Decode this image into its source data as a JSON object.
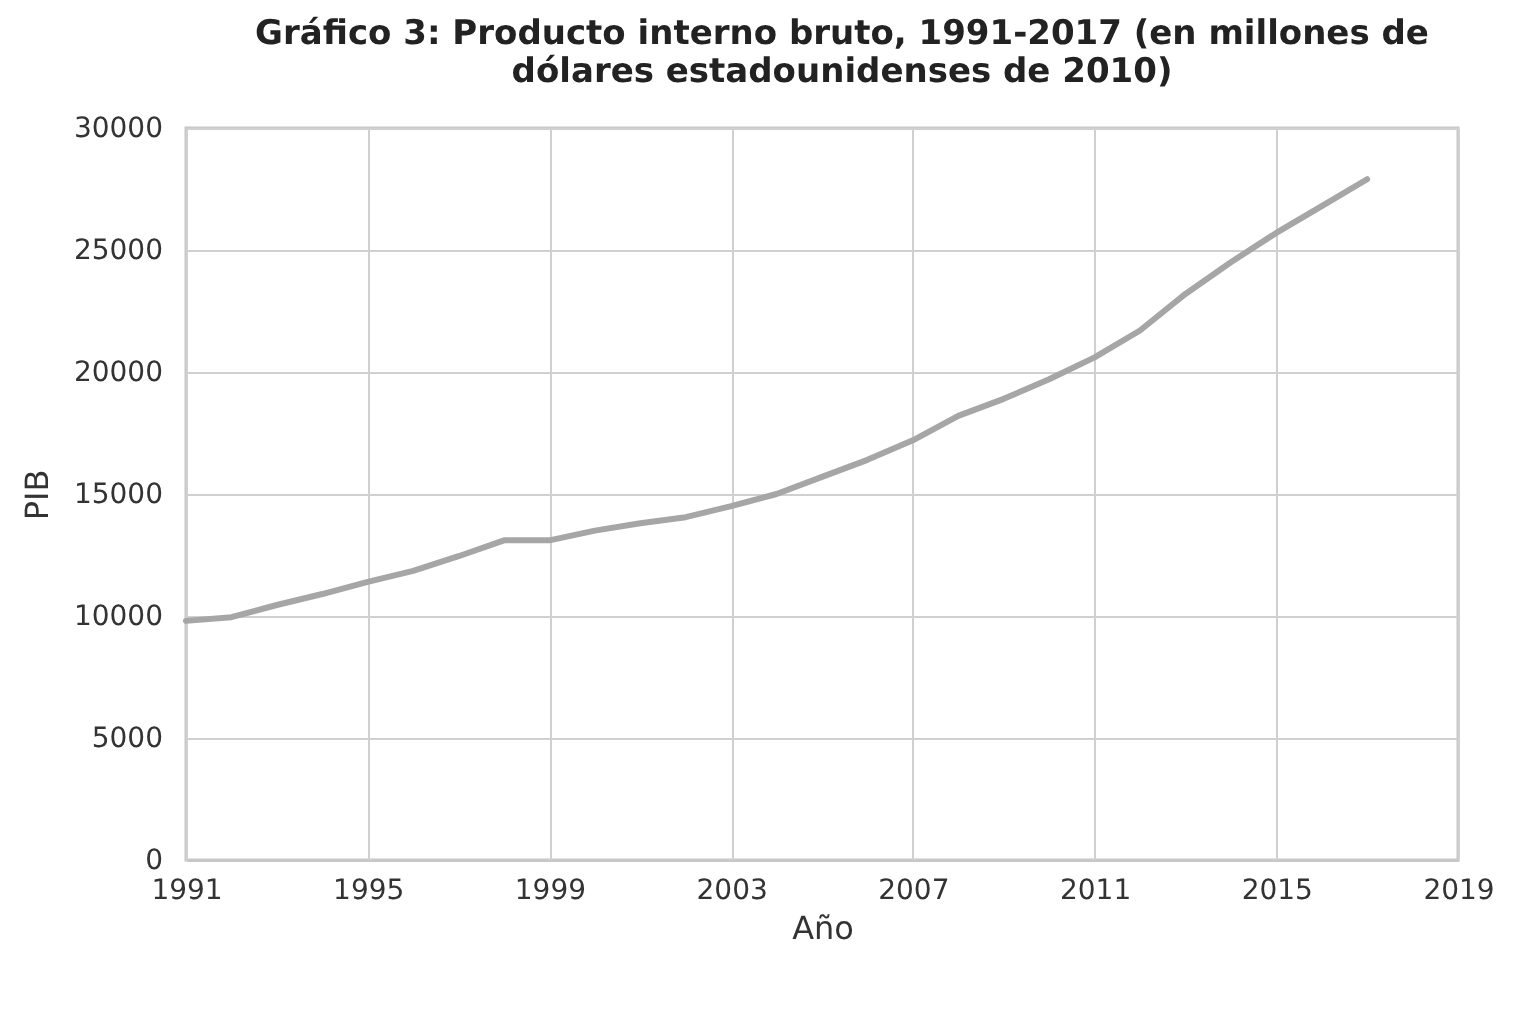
{
  "chart_data": {
    "type": "line",
    "title": "Gráfico 3: Producto interno bruto, 1991-2017 (en millones de dólares estadounidenses de 2010)",
    "xlabel": "Año",
    "ylabel": "PIB",
    "x": [
      1991,
      1992,
      1993,
      1994,
      1995,
      1996,
      1997,
      1998,
      1999,
      2000,
      2001,
      2002,
      2003,
      2004,
      2005,
      2006,
      2007,
      2008,
      2009,
      2010,
      2011,
      2012,
      2013,
      2014,
      2015,
      2016,
      2017
    ],
    "series": [
      {
        "color": "#a6a6a6",
        "values": [
          9800,
          9950,
          10450,
          10900,
          11400,
          11850,
          12450,
          13100,
          13100,
          13500,
          13800,
          14050,
          14500,
          15000,
          15700,
          16400,
          17200,
          18200,
          18900,
          19700,
          20600,
          21700,
          23200,
          24500,
          25700,
          26800,
          27900
        ]
      }
    ],
    "xlim": [
      1991,
      2019
    ],
    "xticks": [
      1991,
      1995,
      1999,
      2003,
      2007,
      2011,
      2015,
      2019
    ],
    "ylim": [
      0,
      30000
    ],
    "yticks": [
      0,
      5000,
      10000,
      15000,
      20000,
      25000,
      30000
    ],
    "grid": true
  }
}
